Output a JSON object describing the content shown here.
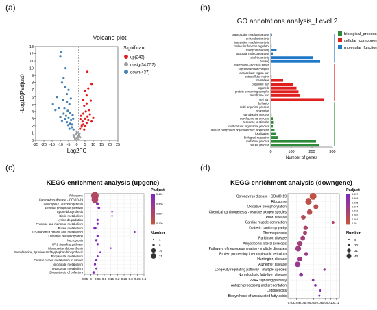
{
  "panels": {
    "a": {
      "letter": "(a)"
    },
    "b": {
      "letter": "(b)"
    },
    "c": {
      "letter": "(c)"
    },
    "d": {
      "letter": "(d)"
    }
  },
  "chart_data": [
    {
      "type": "scatter",
      "title": "Volcano plot",
      "xlabel": "Log2FC",
      "ylabel": "-Log10(Padjust)",
      "xticks": [
        "-25",
        "-20",
        "-15",
        "-10",
        "-5",
        "0",
        "5",
        "10",
        "15",
        "20",
        "25"
      ],
      "yticks": [
        "0",
        "1",
        "2",
        "3",
        "4",
        "5",
        "6",
        "7",
        "8",
        "9",
        "10",
        "11",
        "12",
        "13"
      ],
      "xlim": [
        -25,
        25
      ],
      "ylim": [
        0,
        13
      ],
      "legend": {
        "title": "Significant",
        "position": "right"
      },
      "series": [
        {
          "name": "up(243)",
          "color": "#e41a1c",
          "points": [
            [
              2,
              1.6
            ],
            [
              3,
              1.9
            ],
            [
              4,
              2.2
            ],
            [
              3.5,
              2.6
            ],
            [
              5,
              3
            ],
            [
              4.5,
              1.5
            ],
            [
              6,
              2.4
            ],
            [
              6.5,
              3.3
            ],
            [
              7,
              2.8
            ],
            [
              5.5,
              4
            ],
            [
              7.5,
              4.2
            ],
            [
              8,
              3.6
            ],
            [
              6,
              5.1
            ],
            [
              2.5,
              3.4
            ],
            [
              3,
              2.1
            ],
            [
              4,
              3.7
            ],
            [
              9,
              2.6
            ],
            [
              8.5,
              5.5
            ],
            [
              4.5,
              4.8
            ],
            [
              6,
              6.2
            ],
            [
              5,
              6.8
            ],
            [
              3.6,
              5.6
            ],
            [
              7,
              7.2
            ],
            [
              9,
              7.8
            ],
            [
              6.5,
              9.5
            ],
            [
              10,
              3.1
            ],
            [
              2.2,
              2.9
            ],
            [
              5.2,
              2.0
            ]
          ]
        },
        {
          "name": "nosig(34,057)",
          "color": "#9e9e9e",
          "points": [
            [
              -1,
              0.2
            ],
            [
              0.5,
              0.4
            ],
            [
              1,
              0.6
            ],
            [
              -0.6,
              0.8
            ],
            [
              0.2,
              1
            ],
            [
              -1.5,
              0.5
            ],
            [
              1.6,
              0.9
            ],
            [
              0,
              1.2
            ],
            [
              -0.2,
              0.3
            ],
            [
              0.8,
              0.1
            ],
            [
              -2,
              0.7
            ],
            [
              2,
              0.4
            ]
          ]
        },
        {
          "name": "down(437)",
          "color": "#4682b4",
          "points": [
            [
              -2,
              1.5
            ],
            [
              -3,
              1.8
            ],
            [
              -4,
              2.3
            ],
            [
              -3.5,
              2.8
            ],
            [
              -5,
              3.1
            ],
            [
              -4.5,
              1.6
            ],
            [
              -6,
              2.5
            ],
            [
              -6.5,
              3.4
            ],
            [
              -7,
              2.9
            ],
            [
              -5.5,
              4.1
            ],
            [
              -7.5,
              4.4
            ],
            [
              -8,
              3.7
            ],
            [
              -6,
              5.3
            ],
            [
              -2.5,
              3.5
            ],
            [
              -3,
              2.2
            ],
            [
              -4,
              3.8
            ],
            [
              -9,
              2.7
            ],
            [
              -8.5,
              5.6
            ],
            [
              -4.5,
              5
            ],
            [
              -6,
              6.4
            ],
            [
              -5,
              7
            ],
            [
              -3.6,
              5.8
            ],
            [
              -7,
              7.4
            ],
            [
              -9,
              8
            ],
            [
              -10,
              3.2
            ],
            [
              -2.2,
              3
            ],
            [
              -5.2,
              2.1
            ],
            [
              -11,
              4.5
            ],
            [
              -12,
              6
            ],
            [
              -10,
              11.6
            ],
            [
              -9.5,
              12.2
            ],
            [
              -13,
              4.2
            ],
            [
              -14.5,
              5
            ],
            [
              -8,
              8.6
            ],
            [
              -6.8,
              10
            ]
          ]
        }
      ]
    },
    {
      "type": "bar",
      "orientation": "horizontal",
      "title": "GO annotations analysis_Level 2",
      "xlabel": "Number of genes",
      "xticks": [
        "0",
        "100",
        "200",
        "300"
      ],
      "xlim": [
        0,
        300
      ],
      "legend": {
        "position": "right",
        "entries": [
          "biological_process",
          "cellular_component",
          "molecular_function"
        ]
      },
      "colors": {
        "biological_process": "#2e8b3a",
        "cellular_component": "#e0201f",
        "molecular_function": "#1f78c8"
      },
      "bars": [
        {
          "label": "transcription regulator activity",
          "value": 6,
          "group": "molecular_function"
        },
        {
          "label": "antioxidant activity",
          "value": 3,
          "group": "molecular_function"
        },
        {
          "label": "translation regulator activity",
          "value": 2,
          "group": "molecular_function"
        },
        {
          "label": "molecular function regulator",
          "value": 4,
          "group": "molecular_function"
        },
        {
          "label": "transporter activity",
          "value": 28,
          "group": "molecular_function"
        },
        {
          "label": "structural molecule activity",
          "value": 12,
          "group": "molecular_function"
        },
        {
          "label": "catalytic activity",
          "value": 205,
          "group": "molecular_function"
        },
        {
          "label": "binding",
          "value": 240,
          "group": "molecular_function"
        },
        {
          "label": "membrane-enclosed lumen",
          "value": 2,
          "group": "cellular_component"
        },
        {
          "label": "supramolecular complex",
          "value": 2,
          "group": "cellular_component"
        },
        {
          "label": "extracellular region part",
          "value": 3,
          "group": "cellular_component"
        },
        {
          "label": "extracellular region",
          "value": 4,
          "group": "cellular_component"
        },
        {
          "label": "membrane",
          "value": 60,
          "group": "cellular_component"
        },
        {
          "label": "organelle part",
          "value": 110,
          "group": "cellular_component"
        },
        {
          "label": "organelle",
          "value": 125,
          "group": "cellular_component"
        },
        {
          "label": "protein-containing complex",
          "value": 135,
          "group": "cellular_component"
        },
        {
          "label": "membrane part",
          "value": 140,
          "group": "cellular_component"
        },
        {
          "label": "cell part",
          "value": 260,
          "group": "cellular_component"
        },
        {
          "label": "behavior",
          "value": 2,
          "group": "biological_process"
        },
        {
          "label": "multi-organism process",
          "value": 3,
          "group": "biological_process"
        },
        {
          "label": "locomotion",
          "value": 3,
          "group": "biological_process"
        },
        {
          "label": "reproductive process",
          "value": 4,
          "group": "biological_process"
        },
        {
          "label": "developmental process",
          "value": 10,
          "group": "biological_process"
        },
        {
          "label": "response to stimulus",
          "value": 15,
          "group": "biological_process"
        },
        {
          "label": "multicellular organismal process",
          "value": 12,
          "group": "biological_process"
        },
        {
          "label": "cellular component organization or biogenesis",
          "value": 18,
          "group": "biological_process"
        },
        {
          "label": "localization",
          "value": 25,
          "group": "biological_process"
        },
        {
          "label": "biological regulation",
          "value": 35,
          "group": "biological_process"
        },
        {
          "label": "metabolic process",
          "value": 220,
          "group": "biological_process"
        },
        {
          "label": "cellular process",
          "value": 235,
          "group": "biological_process"
        }
      ]
    },
    {
      "type": "scatter",
      "title": "KEGG enrichment analysis (upgene)",
      "xticks": [
        "-0.05",
        "0",
        "0.05",
        "0.1",
        "0.15",
        "0.2",
        "0.25",
        "0.3",
        "0.35",
        "0.4"
      ],
      "xlim": [
        -0.05,
        0.4
      ],
      "legend": {
        "position": "right",
        "color_title": "Padjust",
        "color_ticks": [
          "0.400",
          "0.300",
          "0.200",
          "0.100"
        ],
        "size_title": "Number",
        "size_ticks": [
          "1",
          "6",
          "16",
          "21"
        ]
      },
      "points": [
        {
          "label": "Ribosome",
          "x": 0.03,
          "n": 21,
          "padj": 0.18
        },
        {
          "label": "Coronavirus disease - COVID-19",
          "x": 0.03,
          "n": 18,
          "padj": 0.2
        },
        {
          "label": "Glycolysis / Gluconeogenesis",
          "x": 0.05,
          "n": 6,
          "padj": 0.35
        },
        {
          "label": "Pentose phosphate pathway",
          "x": 0.06,
          "n": 4,
          "padj": 0.38
        },
        {
          "label": "Lysine biosynthesis",
          "x": 0.16,
          "n": 1,
          "padj": 0.4
        },
        {
          "label": "Biotin metabolism",
          "x": 0.16,
          "n": 1,
          "padj": 0.4
        },
        {
          "label": "Lysine degradation",
          "x": 0.05,
          "n": 3,
          "padj": 0.4
        },
        {
          "label": "Fructose and mannose metabolism",
          "x": 0.05,
          "n": 3,
          "padj": 0.4
        },
        {
          "label": "Purine metabolism",
          "x": 0.03,
          "n": 6,
          "padj": 0.4
        },
        {
          "label": "C5-Branched dibasic acid metabolism",
          "x": 0.33,
          "n": 1,
          "padj": 0.4
        },
        {
          "label": "Oxidative phosphorylation",
          "x": 0.05,
          "n": 3,
          "padj": 0.4
        },
        {
          "label": "Necroptosis",
          "x": 0.04,
          "n": 3,
          "padj": 0.4
        },
        {
          "label": "HIF-1 signaling pathway",
          "x": 0.05,
          "n": 3,
          "padj": 0.4
        },
        {
          "label": "Monobactam biosynthesis",
          "x": 0.15,
          "n": 1,
          "padj": 0.4
        },
        {
          "label": "Phenylalanine, tyrosine and tryptophan biosynthesis",
          "x": 0.07,
          "n": 1,
          "padj": 0.4
        },
        {
          "label": "Propanoate metabolism",
          "x": 0.05,
          "n": 2,
          "padj": 0.4
        },
        {
          "label": "Central carbon metabolism in cancer",
          "x": 0.04,
          "n": 2,
          "padj": 0.4
        },
        {
          "label": "Nucleotide metabolism",
          "x": 0.03,
          "n": 3,
          "padj": 0.4
        },
        {
          "label": "Tryptophan metabolism",
          "x": 0.04,
          "n": 2,
          "padj": 0.4
        },
        {
          "label": "Biosynthesis of cofactors",
          "x": 0.02,
          "n": 4,
          "padj": 0.4
        }
      ]
    },
    {
      "type": "scatter",
      "title": "KEGG enrichment analysis (downgene)",
      "xticks": [
        "0.03",
        "0.04",
        "0.05",
        "0.06",
        "0.07",
        "0.08",
        "0.09",
        "0.10",
        "0.11"
      ],
      "xlim": [
        0.025,
        0.115
      ],
      "legend": {
        "position": "right",
        "color_title": "Padjust",
        "color_ticks": [
          "0.007",
          "0.006",
          "0.005",
          "0.004",
          "0.003",
          "0.002",
          "0.001",
          "0.00"
        ],
        "size_title": "Number",
        "size_ticks": [
          "6",
          "20",
          "31",
          "43"
        ]
      },
      "points": [
        {
          "label": "Coronavirus disease - COVID-19",
          "x": 0.069,
          "n": 43,
          "padj": 0.0005
        },
        {
          "label": "Ribosome",
          "x": 0.061,
          "n": 38,
          "padj": 0.0008
        },
        {
          "label": "Oxidative phosphorylation",
          "x": 0.074,
          "n": 28,
          "padj": 0.001
        },
        {
          "label": "Chemical carcinogenesis - reactive oxygen species",
          "x": 0.063,
          "n": 30,
          "padj": 0.0012
        },
        {
          "label": "Prion disease",
          "x": 0.052,
          "n": 26,
          "padj": 0.0015
        },
        {
          "label": "Cardiac muscle contraction",
          "x": 0.104,
          "n": 12,
          "padj": 0.002
        },
        {
          "label": "Diabetic cardiomyopathy",
          "x": 0.056,
          "n": 24,
          "padj": 0.0025
        },
        {
          "label": "Thermogenesis",
          "x": 0.055,
          "n": 22,
          "padj": 0.003
        },
        {
          "label": "Parkinson disease",
          "x": 0.051,
          "n": 26,
          "padj": 0.0032
        },
        {
          "label": "Amyotrophic lateral sclerosis",
          "x": 0.046,
          "n": 30,
          "padj": 0.0035
        },
        {
          "label": "Pathways of neurodegeneration - multiple diseases",
          "x": 0.043,
          "n": 34,
          "padj": 0.0038
        },
        {
          "label": "Protein processing in endoplasmic reticulum",
          "x": 0.057,
          "n": 20,
          "padj": 0.004
        },
        {
          "label": "Huntington disease",
          "x": 0.046,
          "n": 28,
          "padj": 0.0042
        },
        {
          "label": "Alzheimer disease",
          "x": 0.042,
          "n": 32,
          "padj": 0.0045
        },
        {
          "label": "Longevity regulating pathway - multiple species",
          "x": 0.089,
          "n": 8,
          "padj": 0.005
        },
        {
          "label": "Non-alcoholic fatty liver disease",
          "x": 0.048,
          "n": 20,
          "padj": 0.0055
        },
        {
          "label": "PPAR signaling pathway",
          "x": 0.069,
          "n": 10,
          "padj": 0.006
        },
        {
          "label": "Antigen processing and presentation",
          "x": 0.073,
          "n": 10,
          "padj": 0.0062
        },
        {
          "label": "Legionellosis",
          "x": 0.082,
          "n": 7,
          "padj": 0.0066
        },
        {
          "label": "Biosynthesis of unsaturated fatty acids",
          "x": 0.08,
          "n": 6,
          "padj": 0.007
        }
      ]
    }
  ]
}
